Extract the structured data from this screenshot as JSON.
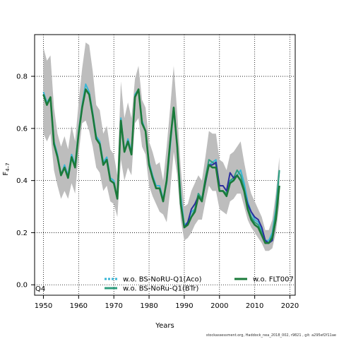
{
  "chart_data": {
    "type": "line",
    "xlabel": "Years",
    "ylabel_main": "F",
    "ylabel_sub": "4–7",
    "xlim": [
      1947.5,
      2021.5
    ],
    "ylim": [
      -0.04,
      0.96
    ],
    "xticks": [
      1950,
      1960,
      1970,
      1980,
      1990,
      2000,
      2010,
      2020
    ],
    "yticks": [
      0.0,
      0.2,
      0.4,
      0.6,
      0.8
    ],
    "ytick_labels": [
      "0.0",
      "0.2",
      "0.4",
      "0.6",
      "0.8"
    ],
    "grid": true,
    "corner_label": "Q4",
    "legend_position": "bottom",
    "x": [
      1950,
      1951,
      1952,
      1953,
      1954,
      1955,
      1956,
      1957,
      1958,
      1959,
      1960,
      1961,
      1962,
      1963,
      1964,
      1965,
      1966,
      1967,
      1968,
      1969,
      1970,
      1971,
      1972,
      1973,
      1974,
      1975,
      1976,
      1977,
      1978,
      1979,
      1980,
      1981,
      1982,
      1983,
      1984,
      1985,
      1986,
      1987,
      1988,
      1989,
      1990,
      1991,
      1992,
      1993,
      1994,
      1995,
      1996,
      1997,
      1998,
      1999,
      2000,
      2001,
      2002,
      2003,
      2004,
      2005,
      2006,
      2007,
      2008,
      2009,
      2010,
      2011,
      2012,
      2013,
      2014,
      2015,
      2016,
      2017
    ],
    "band": {
      "color": "#bdbdbd",
      "upper": [
        0.91,
        0.86,
        0.88,
        0.68,
        0.58,
        0.53,
        0.57,
        0.52,
        0.61,
        0.55,
        0.7,
        0.83,
        0.93,
        0.92,
        0.82,
        0.69,
        0.67,
        0.58,
        0.61,
        0.52,
        0.5,
        0.42,
        0.78,
        0.64,
        0.7,
        0.64,
        0.79,
        0.84,
        0.71,
        0.68,
        0.55,
        0.51,
        0.46,
        0.47,
        0.4,
        0.53,
        0.68,
        0.84,
        0.66,
        0.45,
        0.3,
        0.31,
        0.36,
        0.39,
        0.42,
        0.4,
        0.49,
        0.59,
        0.58,
        0.58,
        0.48,
        0.47,
        0.44,
        0.5,
        0.51,
        0.53,
        0.55,
        0.47,
        0.4,
        0.35,
        0.32,
        0.29,
        0.26,
        0.21,
        0.21,
        0.25,
        0.35,
        0.49
      ],
      "lower": [
        0.58,
        0.55,
        0.58,
        0.44,
        0.38,
        0.33,
        0.36,
        0.33,
        0.39,
        0.35,
        0.5,
        0.62,
        0.63,
        0.59,
        0.53,
        0.45,
        0.43,
        0.36,
        0.38,
        0.32,
        0.31,
        0.26,
        0.48,
        0.4,
        0.45,
        0.42,
        0.62,
        0.64,
        0.53,
        0.5,
        0.38,
        0.34,
        0.31,
        0.28,
        0.27,
        0.24,
        0.36,
        0.51,
        0.42,
        0.25,
        0.17,
        0.18,
        0.2,
        0.23,
        0.25,
        0.25,
        0.32,
        0.38,
        0.36,
        0.36,
        0.29,
        0.28,
        0.27,
        0.32,
        0.33,
        0.35,
        0.35,
        0.3,
        0.25,
        0.22,
        0.2,
        0.18,
        0.16,
        0.13,
        0.13,
        0.14,
        0.2,
        0.31
      ]
    },
    "series": [
      {
        "name": "w.o. BS-NoRU-Q1(Aco)",
        "color": "#39b6d6",
        "dash": true,
        "values": [
          0.74,
          0.7,
          0.72,
          0.55,
          0.5,
          0.42,
          0.46,
          0.42,
          0.5,
          0.46,
          0.59,
          0.69,
          0.77,
          0.74,
          0.66,
          0.57,
          0.55,
          0.47,
          0.49,
          0.41,
          0.4,
          0.33,
          0.64,
          0.51,
          0.56,
          0.51,
          0.73,
          0.75,
          0.63,
          0.59,
          0.47,
          0.42,
          0.38,
          0.38,
          0.33,
          0.39,
          0.53,
          0.68,
          0.53,
          0.34,
          0.23,
          0.24,
          0.28,
          0.29,
          0.35,
          0.33,
          0.4,
          0.46,
          0.47,
          0.48,
          0.36,
          0.36,
          0.35,
          0.4,
          0.4,
          0.42,
          0.44,
          0.39,
          0.32,
          0.28,
          0.25,
          0.24,
          0.21,
          0.17,
          0.17,
          0.2,
          0.29,
          0.44
        ]
      },
      {
        "name": "w.o. BS-NoRu-Q1(BTr)",
        "color": "#2e9e7e",
        "dash": false,
        "values": [
          0.73,
          0.69,
          0.72,
          0.54,
          0.49,
          0.42,
          0.45,
          0.41,
          0.49,
          0.45,
          0.58,
          0.68,
          0.75,
          0.73,
          0.65,
          0.56,
          0.54,
          0.46,
          0.48,
          0.4,
          0.39,
          0.33,
          0.63,
          0.51,
          0.55,
          0.5,
          0.72,
          0.75,
          0.62,
          0.59,
          0.46,
          0.41,
          0.37,
          0.37,
          0.32,
          0.4,
          0.55,
          0.68,
          0.53,
          0.31,
          0.22,
          0.23,
          0.26,
          0.29,
          0.35,
          0.33,
          0.41,
          0.48,
          0.47,
          0.46,
          0.36,
          0.36,
          0.35,
          0.4,
          0.41,
          0.44,
          0.42,
          0.37,
          0.3,
          0.26,
          0.24,
          0.23,
          0.2,
          0.16,
          0.16,
          0.19,
          0.28,
          0.44
        ]
      },
      {
        "name": "",
        "color": "#2b2f9e",
        "dash": false,
        "values": [
          0.73,
          0.69,
          0.72,
          0.54,
          0.49,
          0.42,
          0.45,
          0.41,
          0.49,
          0.45,
          0.58,
          0.68,
          0.75,
          0.73,
          0.65,
          0.56,
          0.54,
          0.46,
          0.48,
          0.4,
          0.39,
          0.33,
          0.63,
          0.51,
          0.55,
          0.5,
          0.72,
          0.75,
          0.62,
          0.59,
          0.46,
          0.41,
          0.37,
          0.37,
          0.32,
          0.4,
          0.55,
          0.68,
          0.53,
          0.31,
          0.22,
          0.24,
          0.29,
          0.31,
          0.34,
          0.32,
          0.39,
          0.46,
          0.46,
          0.47,
          0.38,
          0.38,
          0.36,
          0.43,
          0.41,
          0.42,
          0.4,
          0.36,
          0.31,
          0.28,
          0.26,
          0.25,
          0.22,
          0.17,
          0.16,
          0.17,
          0.25,
          0.38
        ]
      },
      {
        "name": "w.o. FLT007",
        "color": "#1a7a3a",
        "dash": false,
        "values": [
          0.73,
          0.69,
          0.72,
          0.54,
          0.49,
          0.42,
          0.45,
          0.41,
          0.49,
          0.45,
          0.58,
          0.68,
          0.75,
          0.73,
          0.65,
          0.56,
          0.54,
          0.46,
          0.48,
          0.4,
          0.39,
          0.33,
          0.63,
          0.51,
          0.55,
          0.5,
          0.72,
          0.75,
          0.62,
          0.59,
          0.46,
          0.41,
          0.37,
          0.37,
          0.32,
          0.4,
          0.55,
          0.68,
          0.53,
          0.31,
          0.22,
          0.23,
          0.26,
          0.28,
          0.34,
          0.32,
          0.4,
          0.46,
          0.45,
          0.45,
          0.36,
          0.36,
          0.34,
          0.39,
          0.4,
          0.42,
          0.4,
          0.36,
          0.29,
          0.25,
          0.23,
          0.22,
          0.19,
          0.16,
          0.16,
          0.18,
          0.25,
          0.38
        ]
      }
    ]
  },
  "footer": "stockassessment.org, Haddock_nea_2018_002, r9821 , git: a295ef2f11ae"
}
